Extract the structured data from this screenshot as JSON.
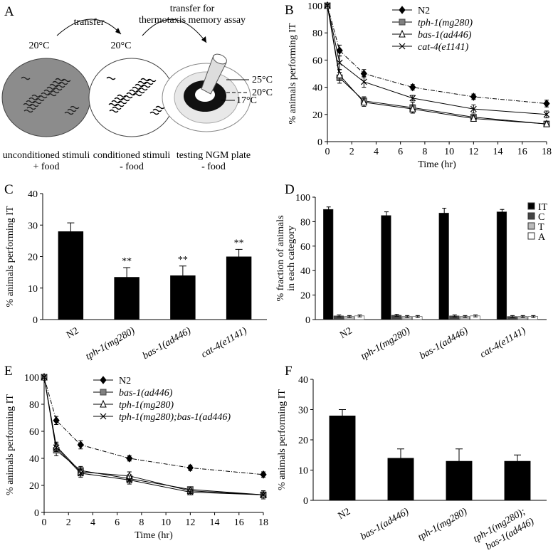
{
  "diagram": {
    "panel": "A",
    "transfer_1": "transfer",
    "transfer_2": [
      "transfer for",
      "thermotaxis memory assay"
    ],
    "plates": [
      {
        "temperature": "20°C",
        "caption": [
          "unconditioned stimuli",
          "+ food"
        ]
      },
      {
        "temperature": "20°C",
        "caption": [
          "conditioned stimuli",
          "- food"
        ]
      },
      {
        "temperatures": [
          "25°C",
          "20°C",
          "17°C"
        ],
        "caption": [
          "testing NGM plate",
          "- food"
        ]
      }
    ]
  },
  "chart_data": [
    {
      "type": "line",
      "panel": "B",
      "xlabel": "Time (hr)",
      "ylabel": "% animals performing IT",
      "x": [
        0,
        1,
        3,
        7,
        12,
        18
      ],
      "xlim": [
        0,
        18
      ],
      "xticks": [
        0,
        2,
        4,
        6,
        8,
        10,
        12,
        14,
        16,
        18
      ],
      "ylim": [
        0,
        100
      ],
      "yticks": [
        0,
        20,
        40,
        60,
        80,
        100
      ],
      "series": [
        {
          "name": "N2",
          "color": "#000000",
          "marker": "diamond",
          "line_style": "dashed",
          "values": [
            100,
            67,
            50,
            40,
            33,
            28
          ],
          "errors": [
            1,
            4,
            3,
            2,
            2,
            2.5
          ]
        },
        {
          "name": "tph-1(mg280)",
          "color": "#808080",
          "marker": "square",
          "values": [
            100,
            47,
            30,
            25,
            18,
            13
          ],
          "errors": [
            1,
            4,
            3,
            4,
            2,
            2
          ]
        },
        {
          "name": "bas-1(ad446)",
          "color": "#000000",
          "marker": "triangle",
          "values": [
            100,
            49,
            29,
            24,
            17,
            13
          ],
          "errors": [
            1,
            4,
            3,
            3,
            2,
            2
          ]
        },
        {
          "name": "cat-4(e1141)",
          "color": "#555555",
          "marker": "x",
          "values": [
            100,
            58,
            44,
            32,
            24,
            20
          ],
          "errors": [
            1,
            5,
            4,
            2,
            3,
            2.5
          ]
        }
      ]
    },
    {
      "type": "bar",
      "panel": "C",
      "ylabel": "% animals performing IT",
      "categories": [
        "N2",
        "tph-1(mg280)",
        "bas-1(ad446)",
        "cat-4(e1141)"
      ],
      "values": [
        28,
        13.5,
        14,
        20
      ],
      "errors": [
        2.7,
        3,
        3,
        2.3
      ],
      "annotations": [
        null,
        "**",
        "**",
        "**"
      ],
      "color": "#000000",
      "ylim": [
        0,
        40
      ],
      "yticks": [
        0,
        10,
        20,
        30,
        40
      ]
    },
    {
      "type": "grouped_bar",
      "panel": "D",
      "ylabel": [
        "% fraction of animals",
        "in each category"
      ],
      "categories": [
        "N2",
        "tph-1(mg280)",
        "bas-1(ad446)",
        "cat-4(e1141)"
      ],
      "ylim": [
        0,
        100
      ],
      "yticks": [
        0,
        20,
        40,
        60,
        80,
        100
      ],
      "series": [
        {
          "name": "IT",
          "color": "#000000",
          "values": [
            90,
            85,
            87,
            88
          ],
          "errors": [
            2,
            3,
            4,
            2
          ]
        },
        {
          "name": "C",
          "color": "#444444",
          "values": [
            3,
            3.5,
            3,
            2.5
          ],
          "errors": [
            0.8,
            0.8,
            0.8,
            0.8
          ]
        },
        {
          "name": "T",
          "color": "#bbbbbb",
          "values": [
            2.5,
            2.5,
            2.5,
            2.5
          ],
          "errors": [
            0.8,
            0.8,
            0.8,
            0.8
          ]
        },
        {
          "name": "A",
          "color": "#ffffff",
          "values": [
            3,
            2.5,
            3,
            2.5
          ],
          "errors": [
            0.8,
            0.8,
            0.8,
            0.8
          ]
        }
      ]
    },
    {
      "type": "line",
      "panel": "E",
      "xlabel": "Time (hr)",
      "ylabel": "% animals performing IT",
      "x": [
        0,
        1,
        3,
        7,
        12,
        18
      ],
      "xlim": [
        0,
        18
      ],
      "xticks": [
        0,
        2,
        4,
        6,
        8,
        10,
        12,
        14,
        16,
        18
      ],
      "ylim": [
        0,
        100
      ],
      "yticks": [
        0,
        20,
        40,
        60,
        80,
        100
      ],
      "series": [
        {
          "name": "N2",
          "color": "#000000",
          "marker": "diamond",
          "line_style": "dashed",
          "values": [
            100,
            68,
            50,
            40,
            33,
            28
          ],
          "errors": [
            1,
            3,
            3,
            2,
            2,
            2
          ]
        },
        {
          "name": "bas-1(ad446)",
          "color": "#808080",
          "marker": "square",
          "values": [
            100,
            46,
            31,
            25,
            17,
            13
          ],
          "errors": [
            1,
            4,
            3,
            3,
            2,
            3
          ]
        },
        {
          "name": "tph-1(mg280)",
          "color": "#000000",
          "marker": "triangle",
          "values": [
            100,
            49,
            30,
            27,
            16,
            13
          ],
          "errors": [
            1,
            3,
            3,
            3,
            2,
            3
          ]
        },
        {
          "name": "tph-1(mg280);bas-1(ad446)",
          "color": "#555555",
          "marker": "x",
          "values": [
            100,
            48,
            29,
            24,
            15,
            13
          ],
          "errors": [
            1,
            3,
            3,
            3,
            2,
            3
          ]
        }
      ]
    },
    {
      "type": "bar",
      "panel": "F",
      "ylabel": "% animals performing IT",
      "categories": [
        "N2",
        "bas-1(ad446)",
        "tph-1(mg280)",
        [
          "tph-1(mg280);",
          "bas-1(ad446)"
        ]
      ],
      "values": [
        28,
        14,
        13,
        13
      ],
      "errors": [
        2,
        3,
        4,
        2
      ],
      "color": "#000000",
      "ylim": [
        0,
        40
      ],
      "yticks": [
        0,
        10,
        20,
        30,
        40
      ]
    }
  ]
}
